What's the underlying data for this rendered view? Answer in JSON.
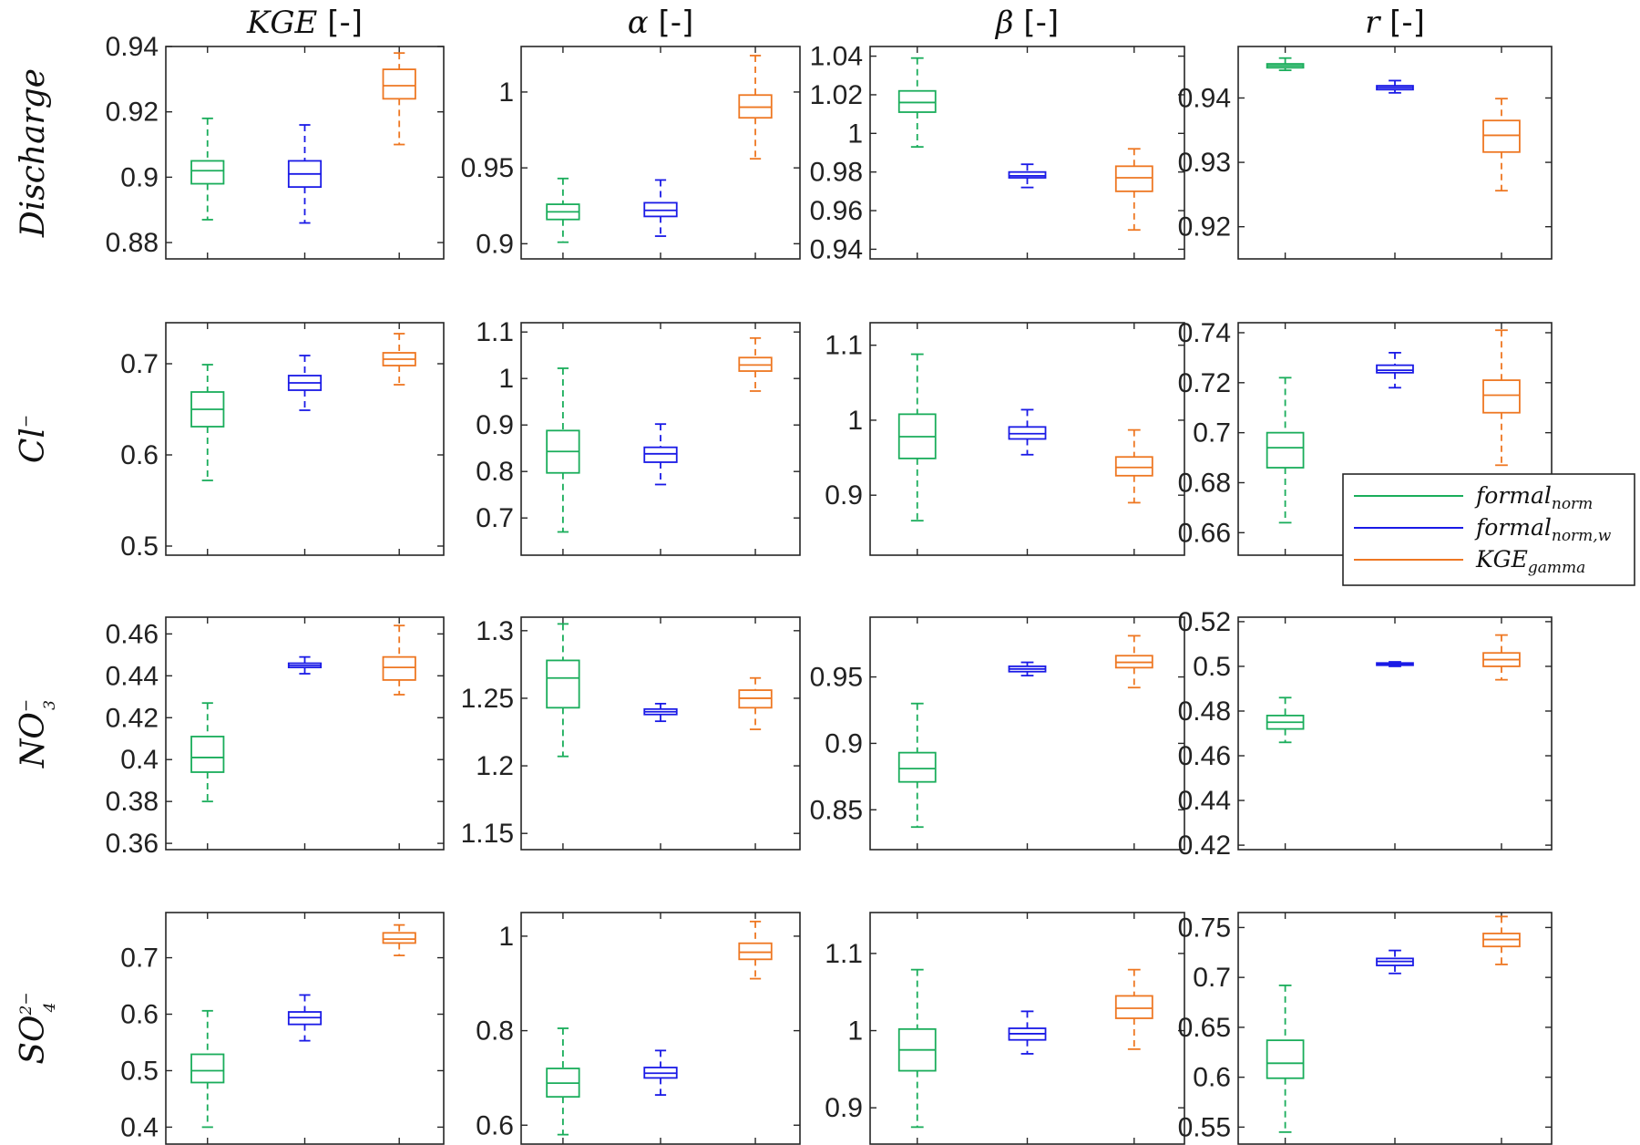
{
  "chart_data": {
    "type": "box",
    "columns": [
      {
        "title": "KGE",
        "unit": "[-]"
      },
      {
        "title": "α",
        "unit": "[-]"
      },
      {
        "title": "β",
        "unit": "[-]"
      },
      {
        "title": "r",
        "unit": "[-]"
      }
    ],
    "rows": [
      {
        "label": "Discharge",
        "sup": "",
        "sub": ""
      },
      {
        "label": "Cl",
        "sup": "−",
        "sub": ""
      },
      {
        "label": "NO",
        "sup": "−",
        "sub": "3"
      },
      {
        "label": "SO",
        "sup": "2−",
        "sub": "4"
      }
    ],
    "series": [
      {
        "name": "formal",
        "name_sub": "norm",
        "color": "#1aad5b"
      },
      {
        "name": "formal",
        "name_sub": "norm,w",
        "color": "#1a1ae6"
      },
      {
        "name": "KGE",
        "name_sub": "gamma",
        "color": "#ee7722"
      }
    ],
    "legend": {
      "location": "row 2, column 4, lower right"
    },
    "panels": [
      {
        "row": 0,
        "col": 0,
        "ylim": [
          0.875,
          0.94
        ],
        "yticks": [
          "0.88",
          "0.9",
          "0.92",
          "0.94"
        ],
        "boxes": [
          {
            "series": 0,
            "whisker_low": 0.887,
            "q1": 0.898,
            "median": 0.902,
            "q3": 0.905,
            "whisker_high": 0.918
          },
          {
            "series": 1,
            "whisker_low": 0.886,
            "q1": 0.897,
            "median": 0.901,
            "q3": 0.905,
            "whisker_high": 0.916
          },
          {
            "series": 2,
            "whisker_low": 0.91,
            "q1": 0.924,
            "median": 0.928,
            "q3": 0.933,
            "whisker_high": 0.938
          }
        ]
      },
      {
        "row": 0,
        "col": 1,
        "ylim": [
          0.89,
          1.03
        ],
        "yticks": [
          "0.9",
          "0.95",
          "1"
        ],
        "boxes": [
          {
            "series": 0,
            "whisker_low": 0.901,
            "q1": 0.916,
            "median": 0.921,
            "q3": 0.926,
            "whisker_high": 0.943
          },
          {
            "series": 1,
            "whisker_low": 0.905,
            "q1": 0.918,
            "median": 0.922,
            "q3": 0.927,
            "whisker_high": 0.942
          },
          {
            "series": 2,
            "whisker_low": 0.956,
            "q1": 0.983,
            "median": 0.99,
            "q3": 0.998,
            "whisker_high": 1.024
          }
        ]
      },
      {
        "row": 0,
        "col": 2,
        "ylim": [
          0.935,
          1.045
        ],
        "yticks": [
          "0.94",
          "0.96",
          "0.98",
          "1",
          "1.02",
          "1.04"
        ],
        "boxes": [
          {
            "series": 0,
            "whisker_low": 0.993,
            "q1": 1.011,
            "median": 1.016,
            "q3": 1.022,
            "whisker_high": 1.039
          },
          {
            "series": 1,
            "whisker_low": 0.972,
            "q1": 0.977,
            "median": 0.978,
            "q3": 0.98,
            "whisker_high": 0.984
          },
          {
            "series": 2,
            "whisker_low": 0.95,
            "q1": 0.97,
            "median": 0.977,
            "q3": 0.983,
            "whisker_high": 0.992
          }
        ]
      },
      {
        "row": 0,
        "col": 3,
        "ylim": [
          0.915,
          0.948
        ],
        "yticks": [
          "0.92",
          "0.93",
          "0.94"
        ],
        "boxes": [
          {
            "series": 0,
            "whisker_low": 0.9443,
            "q1": 0.9447,
            "median": 0.945,
            "q3": 0.9453,
            "whisker_high": 0.9462
          },
          {
            "series": 1,
            "whisker_low": 0.9408,
            "q1": 0.9413,
            "median": 0.9416,
            "q3": 0.9419,
            "whisker_high": 0.9427
          },
          {
            "series": 2,
            "whisker_low": 0.9256,
            "q1": 0.9316,
            "median": 0.9342,
            "q3": 0.9365,
            "whisker_high": 0.9399
          }
        ]
      },
      {
        "row": 1,
        "col": 0,
        "ylim": [
          0.49,
          0.745
        ],
        "yticks": [
          "0.5",
          "0.6",
          "0.7"
        ],
        "boxes": [
          {
            "series": 0,
            "whisker_low": 0.572,
            "q1": 0.631,
            "median": 0.65,
            "q3": 0.669,
            "whisker_high": 0.699
          },
          {
            "series": 1,
            "whisker_low": 0.649,
            "q1": 0.671,
            "median": 0.679,
            "q3": 0.687,
            "whisker_high": 0.709
          },
          {
            "series": 2,
            "whisker_low": 0.677,
            "q1": 0.698,
            "median": 0.705,
            "q3": 0.712,
            "whisker_high": 0.733
          }
        ]
      },
      {
        "row": 1,
        "col": 1,
        "ylim": [
          0.62,
          1.12
        ],
        "yticks": [
          "0.7",
          "0.8",
          "0.9",
          "1",
          "1.1"
        ],
        "boxes": [
          {
            "series": 0,
            "whisker_low": 0.67,
            "q1": 0.797,
            "median": 0.843,
            "q3": 0.888,
            "whisker_high": 1.022
          },
          {
            "series": 1,
            "whisker_low": 0.772,
            "q1": 0.82,
            "median": 0.838,
            "q3": 0.852,
            "whisker_high": 0.902
          },
          {
            "series": 2,
            "whisker_low": 0.973,
            "q1": 1.016,
            "median": 1.029,
            "q3": 1.045,
            "whisker_high": 1.087
          }
        ]
      },
      {
        "row": 1,
        "col": 2,
        "ylim": [
          0.82,
          1.13
        ],
        "yticks": [
          "0.9",
          "1",
          "1.1"
        ],
        "boxes": [
          {
            "series": 0,
            "whisker_low": 0.866,
            "q1": 0.949,
            "median": 0.978,
            "q3": 1.008,
            "whisker_high": 1.088
          },
          {
            "series": 1,
            "whisker_low": 0.954,
            "q1": 0.975,
            "median": 0.982,
            "q3": 0.991,
            "whisker_high": 1.014
          },
          {
            "series": 2,
            "whisker_low": 0.89,
            "q1": 0.926,
            "median": 0.937,
            "q3": 0.951,
            "whisker_high": 0.987
          }
        ]
      },
      {
        "row": 1,
        "col": 3,
        "ylim": [
          0.651,
          0.744
        ],
        "yticks": [
          "0.66",
          "0.68",
          "0.7",
          "0.72",
          "0.74"
        ],
        "boxes": [
          {
            "series": 0,
            "whisker_low": 0.664,
            "q1": 0.686,
            "median": 0.694,
            "q3": 0.7,
            "whisker_high": 0.722
          },
          {
            "series": 1,
            "whisker_low": 0.718,
            "q1": 0.724,
            "median": 0.725,
            "q3": 0.727,
            "whisker_high": 0.732
          },
          {
            "series": 2,
            "whisker_low": 0.687,
            "q1": 0.708,
            "median": 0.715,
            "q3": 0.721,
            "whisker_high": 0.741
          }
        ]
      },
      {
        "row": 2,
        "col": 0,
        "ylim": [
          0.357,
          0.468
        ],
        "yticks": [
          "0.36",
          "0.38",
          "0.4",
          "0.42",
          "0.44",
          "0.46"
        ],
        "boxes": [
          {
            "series": 0,
            "whisker_low": 0.38,
            "q1": 0.394,
            "median": 0.401,
            "q3": 0.411,
            "whisker_high": 0.427
          },
          {
            "series": 1,
            "whisker_low": 0.441,
            "q1": 0.444,
            "median": 0.445,
            "q3": 0.446,
            "whisker_high": 0.449
          },
          {
            "series": 2,
            "whisker_low": 0.431,
            "q1": 0.438,
            "median": 0.444,
            "q3": 0.449,
            "whisker_high": 0.464
          }
        ]
      },
      {
        "row": 2,
        "col": 1,
        "ylim": [
          1.138,
          1.31
        ],
        "yticks": [
          "1.15",
          "1.2",
          "1.25",
          "1.3"
        ],
        "boxes": [
          {
            "series": 0,
            "whisker_low": 1.207,
            "q1": 1.243,
            "median": 1.265,
            "q3": 1.278,
            "whisker_high": 1.305
          },
          {
            "series": 1,
            "whisker_low": 1.233,
            "q1": 1.238,
            "median": 1.24,
            "q3": 1.242,
            "whisker_high": 1.246
          },
          {
            "series": 2,
            "whisker_low": 1.227,
            "q1": 1.243,
            "median": 1.25,
            "q3": 1.256,
            "whisker_high": 1.265
          }
        ]
      },
      {
        "row": 2,
        "col": 2,
        "ylim": [
          0.82,
          0.995
        ],
        "yticks": [
          "0.85",
          "0.9",
          "0.95"
        ],
        "boxes": [
          {
            "series": 0,
            "whisker_low": 0.837,
            "q1": 0.871,
            "median": 0.881,
            "q3": 0.893,
            "whisker_high": 0.93
          },
          {
            "series": 1,
            "whisker_low": 0.951,
            "q1": 0.954,
            "median": 0.956,
            "q3": 0.958,
            "whisker_high": 0.961
          },
          {
            "series": 2,
            "whisker_low": 0.942,
            "q1": 0.957,
            "median": 0.961,
            "q3": 0.966,
            "whisker_high": 0.981
          }
        ]
      },
      {
        "row": 2,
        "col": 3,
        "ylim": [
          0.418,
          0.522
        ],
        "yticks": [
          "0.42",
          "0.44",
          "0.46",
          "0.48",
          "0.5",
          "0.52"
        ],
        "boxes": [
          {
            "series": 0,
            "whisker_low": 0.466,
            "q1": 0.472,
            "median": 0.475,
            "q3": 0.478,
            "whisker_high": 0.486
          },
          {
            "series": 1,
            "whisker_low": 0.5,
            "q1": 0.5005,
            "median": 0.501,
            "q3": 0.5015,
            "whisker_high": 0.502
          },
          {
            "series": 2,
            "whisker_low": 0.494,
            "q1": 0.5,
            "median": 0.503,
            "q3": 0.506,
            "whisker_high": 0.514
          }
        ]
      },
      {
        "row": 3,
        "col": 0,
        "ylim": [
          0.37,
          0.78
        ],
        "yticks": [
          "0.4",
          "0.5",
          "0.6",
          "0.7"
        ],
        "boxes": [
          {
            "series": 0,
            "whisker_low": 0.4,
            "q1": 0.479,
            "median": 0.5,
            "q3": 0.529,
            "whisker_high": 0.606
          },
          {
            "series": 1,
            "whisker_low": 0.553,
            "q1": 0.582,
            "median": 0.594,
            "q3": 0.604,
            "whisker_high": 0.634
          },
          {
            "series": 2,
            "whisker_low": 0.704,
            "q1": 0.726,
            "median": 0.733,
            "q3": 0.744,
            "whisker_high": 0.758
          }
        ]
      },
      {
        "row": 3,
        "col": 1,
        "ylim": [
          0.56,
          1.05
        ],
        "yticks": [
          "0.6",
          "0.8",
          "1"
        ],
        "boxes": [
          {
            "series": 0,
            "whisker_low": 0.58,
            "q1": 0.66,
            "median": 0.689,
            "q3": 0.72,
            "whisker_high": 0.805
          },
          {
            "series": 1,
            "whisker_low": 0.664,
            "q1": 0.7,
            "median": 0.71,
            "q3": 0.722,
            "whisker_high": 0.758
          },
          {
            "series": 2,
            "whisker_low": 0.91,
            "q1": 0.951,
            "median": 0.966,
            "q3": 0.985,
            "whisker_high": 1.031
          }
        ]
      },
      {
        "row": 3,
        "col": 2,
        "ylim": [
          0.853,
          1.153
        ],
        "yticks": [
          "0.9",
          "1",
          "1.1"
        ],
        "boxes": [
          {
            "series": 0,
            "whisker_low": 0.875,
            "q1": 0.948,
            "median": 0.975,
            "q3": 1.002,
            "whisker_high": 1.079
          },
          {
            "series": 1,
            "whisker_low": 0.97,
            "q1": 0.988,
            "median": 0.996,
            "q3": 1.003,
            "whisker_high": 1.025
          },
          {
            "series": 2,
            "whisker_low": 0.976,
            "q1": 1.016,
            "median": 1.029,
            "q3": 1.045,
            "whisker_high": 1.079
          }
        ]
      },
      {
        "row": 3,
        "col": 3,
        "ylim": [
          0.533,
          0.765
        ],
        "yticks": [
          "0.55",
          "0.6",
          "0.65",
          "0.7",
          "0.75"
        ],
        "boxes": [
          {
            "series": 0,
            "whisker_low": 0.545,
            "q1": 0.599,
            "median": 0.614,
            "q3": 0.637,
            "whisker_high": 0.692
          },
          {
            "series": 1,
            "whisker_low": 0.704,
            "q1": 0.712,
            "median": 0.716,
            "q3": 0.719,
            "whisker_high": 0.727
          },
          {
            "series": 2,
            "whisker_low": 0.713,
            "q1": 0.731,
            "median": 0.738,
            "q3": 0.744,
            "whisker_high": 0.761
          }
        ]
      }
    ]
  }
}
